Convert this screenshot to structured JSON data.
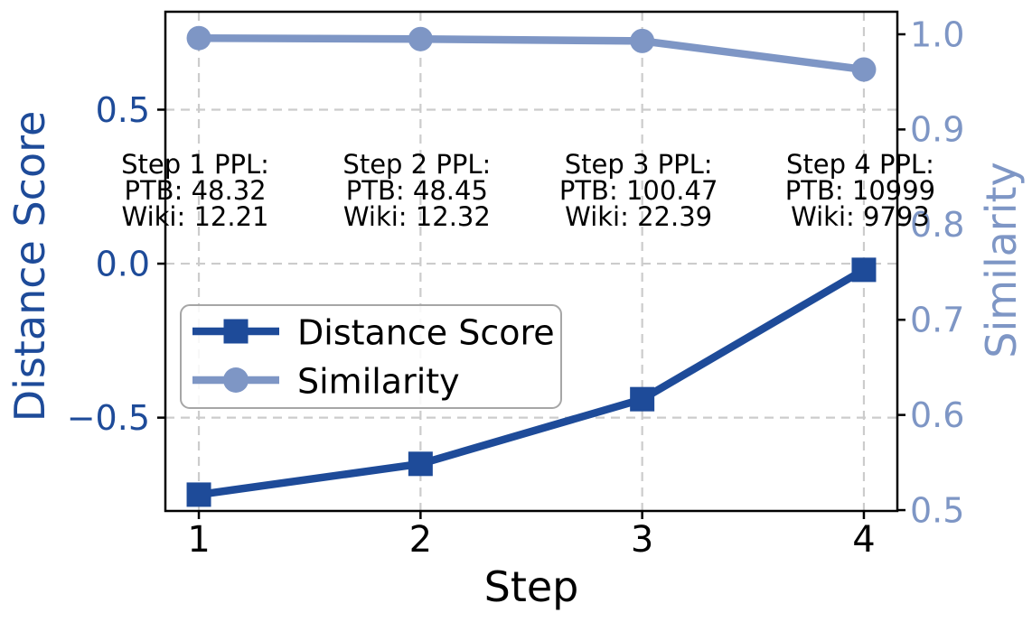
{
  "chart_data": {
    "type": "line",
    "title": "",
    "xlabel": "Step",
    "x": [
      1,
      2,
      3,
      4
    ],
    "x_ticks": [
      "1",
      "2",
      "3",
      "4"
    ],
    "x_range": [
      0.849,
      4.151
    ],
    "grid": true,
    "series": [
      {
        "name": "Distance Score",
        "axis": "left",
        "marker": "square",
        "color": "#1e4b99",
        "values": [
          -0.75,
          -0.65,
          -0.44,
          -0.02
        ]
      },
      {
        "name": "Similarity",
        "axis": "right",
        "marker": "circle",
        "color": "#7e96c5",
        "values": [
          0.996,
          0.995,
          0.993,
          0.963
        ]
      }
    ],
    "left_axis": {
      "label": "Distance Score",
      "color": "#1e4b99",
      "tick_labels": [
        "0.5",
        "0.0",
        "−0.5"
      ],
      "tick_values": [
        0.5,
        0.0,
        -0.5
      ],
      "range": [
        -0.803,
        0.818
      ],
      "grid_values": [
        0.5,
        0.0,
        -0.5
      ]
    },
    "right_axis": {
      "label": "Similarity",
      "color": "#7e96c5",
      "tick_labels": [
        "1.0",
        "0.9",
        "0.8",
        "0.7",
        "0.6",
        "0.5"
      ],
      "tick_values": [
        1.0,
        0.9,
        0.8,
        0.7,
        0.6,
        0.5
      ],
      "range": [
        0.4991,
        1.0237
      ]
    },
    "legend": {
      "position": "center-left",
      "entries": [
        "Distance Score",
        "Similarity"
      ]
    },
    "annotations": [
      {
        "step": 1,
        "lines": [
          "Step 1 PPL:",
          "PTB: 48.32",
          "Wiki: 12.21"
        ]
      },
      {
        "step": 2,
        "lines": [
          "Step 2 PPL:",
          "PTB: 48.45",
          "Wiki: 12.32"
        ]
      },
      {
        "step": 3,
        "lines": [
          "Step 3 PPL:",
          "PTB: 100.47",
          "Wiki: 22.39"
        ]
      },
      {
        "step": 4,
        "lines": [
          "Step 4 PPL:",
          "PTB: 10999",
          "Wiki: 9793"
        ]
      }
    ],
    "colors": {
      "grid": "#cccccc",
      "spine": "#000000",
      "text": "#000000",
      "legend_border": "#a6a6a6"
    }
  }
}
